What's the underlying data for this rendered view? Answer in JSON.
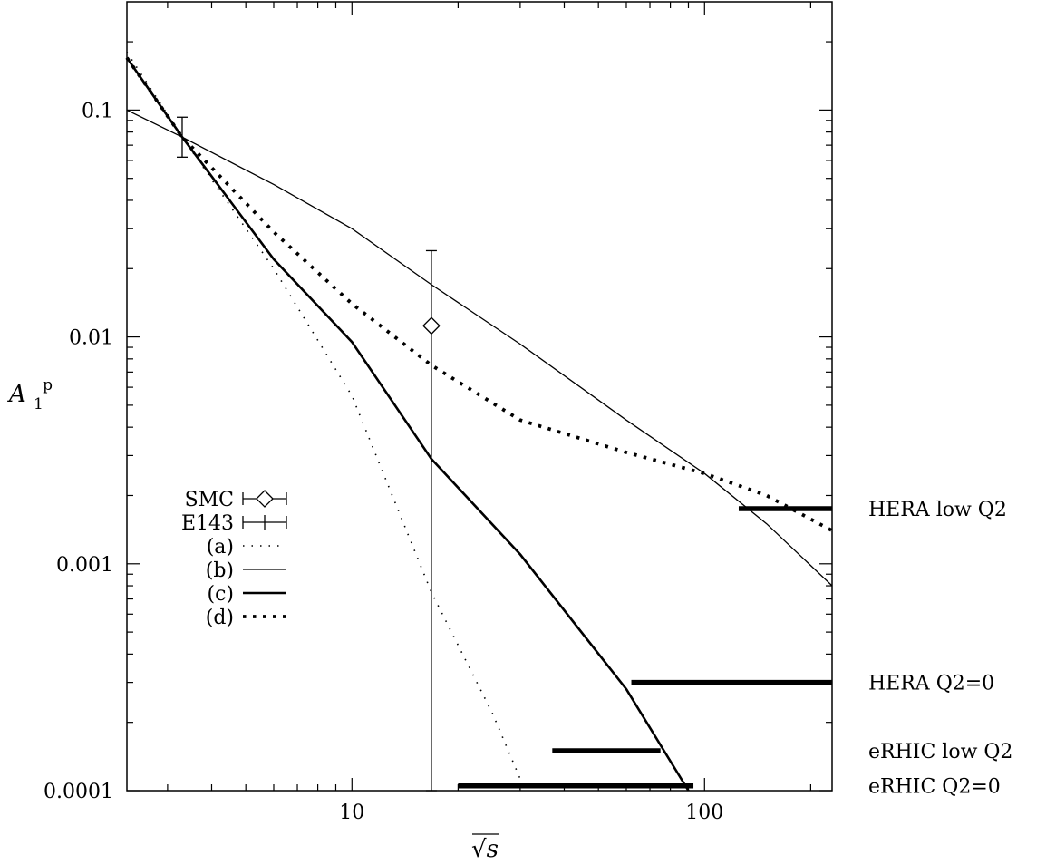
{
  "chart_data": {
    "type": "line",
    "xscale": "log",
    "yscale": "log",
    "xlim": [
      2.3,
      230
    ],
    "ylim": [
      0.0001,
      0.3
    ],
    "x_ticks": [
      10,
      100
    ],
    "x_tick_labels": [
      "10",
      "100"
    ],
    "y_ticks": [
      0.0001,
      0.001,
      0.01,
      0.1
    ],
    "y_tick_labels": [
      "0.0001",
      "0.001",
      "0.01",
      "0.1"
    ],
    "xlabel": "√s",
    "ylabel": "A",
    "ylabel_sub": "1",
    "ylabel_sup": "p",
    "points": [
      {
        "name": "SMC",
        "x": 16.8,
        "y": 0.0112,
        "yerr_low": 0.0001,
        "yerr_high": 0.024,
        "marker": "diamond"
      },
      {
        "name": "E143",
        "x": 3.3,
        "y": 0.076,
        "yerr_low": 0.062,
        "yerr_high": 0.093,
        "marker": "none"
      }
    ],
    "series": [
      {
        "name": "(a)",
        "style": "dotted-thin",
        "x": [
          2.3,
          3.3,
          6,
          10,
          16.8,
          25,
          31
        ],
        "y": [
          0.18,
          0.076,
          0.02,
          0.0055,
          0.00075,
          0.00022,
          0.0001
        ]
      },
      {
        "name": "(b)",
        "style": "solid-thin",
        "x": [
          2.3,
          3.3,
          6,
          10,
          16.8,
          30,
          60,
          100,
          150,
          230
        ],
        "y": [
          0.1,
          0.076,
          0.047,
          0.03,
          0.017,
          0.0093,
          0.0043,
          0.0025,
          0.0015,
          0.0008
        ]
      },
      {
        "name": "(c)",
        "style": "solid-thick",
        "x": [
          2.3,
          3.3,
          6,
          10,
          16.8,
          30,
          60,
          90
        ],
        "y": [
          0.17,
          0.076,
          0.022,
          0.0095,
          0.0029,
          0.0011,
          0.00028,
          0.0001
        ]
      },
      {
        "name": "(d)",
        "style": "dotted-thick",
        "x": [
          2.3,
          3.3,
          6,
          10,
          16.8,
          30,
          60,
          100,
          150,
          230
        ],
        "y": [
          0.17,
          0.076,
          0.029,
          0.014,
          0.0075,
          0.0043,
          0.0031,
          0.0025,
          0.002,
          0.0014
        ]
      }
    ],
    "ranges": [
      {
        "label": "HERA low Q2",
        "x_start": 125,
        "x_end": 230,
        "y": 0.00175
      },
      {
        "label": "HERA Q2=0",
        "x_start": 62,
        "x_end": 230,
        "y": 0.0003
      },
      {
        "label": "eRHIC low Q2",
        "x_start": 37,
        "x_end": 75,
        "y": 0.00015
      },
      {
        "label": "eRHIC Q2=0",
        "x_start": 20,
        "x_end": 93,
        "y": 0.000105
      }
    ],
    "legend": {
      "placement": "left-middle",
      "entries": [
        "SMC",
        "E143",
        "(a)",
        "(b)",
        "(c)",
        "(d)"
      ]
    },
    "grid": false
  }
}
